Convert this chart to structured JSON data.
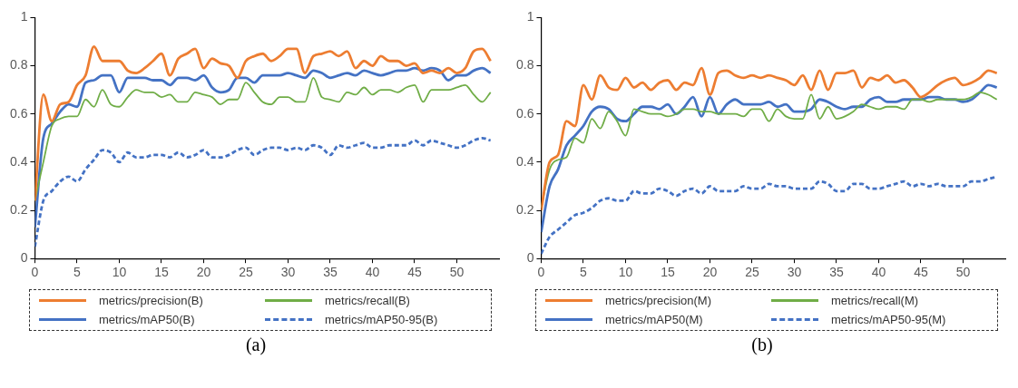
{
  "chart_data": [
    {
      "type": "line",
      "x": [
        0,
        1,
        2,
        3,
        4,
        5,
        6,
        7,
        8,
        9,
        10,
        11,
        12,
        13,
        14,
        15,
        16,
        17,
        18,
        19,
        20,
        21,
        22,
        23,
        24,
        25,
        26,
        27,
        28,
        29,
        30,
        31,
        32,
        33,
        34,
        35,
        36,
        37,
        38,
        39,
        40,
        41,
        42,
        43,
        44,
        45,
        46,
        47,
        48,
        49,
        50,
        51,
        52,
        53,
        54
      ],
      "xlim": [
        0,
        55
      ],
      "xticks": [
        0,
        5,
        10,
        15,
        20,
        25,
        30,
        35,
        40,
        45,
        50
      ],
      "ylim": [
        0,
        1
      ],
      "yticks": [
        0,
        0.2,
        0.4,
        0.6,
        0.8,
        1
      ],
      "grid": false,
      "marker": "none",
      "legend": "bottom",
      "annotations": [
        "(a)"
      ],
      "series": [
        {
          "name": "metrics/precision(B)",
          "color": "#ed7d31",
          "line_style": "solid",
          "values": [
            0.24,
            0.68,
            0.57,
            0.64,
            0.65,
            0.72,
            0.76,
            0.88,
            0.82,
            0.82,
            0.82,
            0.78,
            0.77,
            0.79,
            0.82,
            0.85,
            0.76,
            0.83,
            0.85,
            0.87,
            0.79,
            0.83,
            0.81,
            0.8,
            0.75,
            0.82,
            0.84,
            0.85,
            0.82,
            0.84,
            0.87,
            0.87,
            0.77,
            0.84,
            0.85,
            0.86,
            0.84,
            0.86,
            0.79,
            0.82,
            0.8,
            0.84,
            0.82,
            0.82,
            0.8,
            0.81,
            0.77,
            0.78,
            0.77,
            0.79,
            0.77,
            0.79,
            0.86,
            0.87,
            0.82
          ]
        },
        {
          "name": "metrics/recall(B)",
          "color": "#70ad47",
          "line_style": "solid",
          "values": [
            0.24,
            0.4,
            0.55,
            0.58,
            0.59,
            0.59,
            0.66,
            0.63,
            0.7,
            0.64,
            0.63,
            0.67,
            0.7,
            0.69,
            0.69,
            0.67,
            0.68,
            0.65,
            0.65,
            0.69,
            0.68,
            0.67,
            0.64,
            0.66,
            0.66,
            0.73,
            0.69,
            0.65,
            0.64,
            0.67,
            0.67,
            0.65,
            0.65,
            0.75,
            0.67,
            0.66,
            0.65,
            0.69,
            0.68,
            0.71,
            0.68,
            0.7,
            0.7,
            0.69,
            0.71,
            0.72,
            0.65,
            0.7,
            0.7,
            0.7,
            0.71,
            0.72,
            0.68,
            0.65,
            0.69
          ]
        },
        {
          "name": "metrics/mAP50(B)",
          "color": "#4472c4",
          "line_style": "solid",
          "values": [
            0.13,
            0.5,
            0.56,
            0.61,
            0.64,
            0.63,
            0.73,
            0.74,
            0.76,
            0.76,
            0.69,
            0.75,
            0.75,
            0.75,
            0.74,
            0.74,
            0.72,
            0.75,
            0.75,
            0.74,
            0.76,
            0.71,
            0.69,
            0.7,
            0.75,
            0.75,
            0.73,
            0.76,
            0.76,
            0.76,
            0.77,
            0.76,
            0.75,
            0.78,
            0.77,
            0.75,
            0.76,
            0.77,
            0.76,
            0.78,
            0.77,
            0.76,
            0.77,
            0.78,
            0.78,
            0.79,
            0.78,
            0.79,
            0.78,
            0.74,
            0.76,
            0.76,
            0.78,
            0.79,
            0.77
          ]
        },
        {
          "name": "metrics/mAP50-95(B)",
          "color": "#4472c4",
          "line_style": "dashed",
          "values": [
            0.05,
            0.24,
            0.28,
            0.32,
            0.34,
            0.32,
            0.37,
            0.41,
            0.45,
            0.44,
            0.4,
            0.44,
            0.42,
            0.42,
            0.43,
            0.43,
            0.42,
            0.44,
            0.42,
            0.43,
            0.45,
            0.42,
            0.42,
            0.43,
            0.45,
            0.46,
            0.43,
            0.45,
            0.46,
            0.46,
            0.45,
            0.46,
            0.45,
            0.47,
            0.46,
            0.43,
            0.47,
            0.46,
            0.47,
            0.48,
            0.46,
            0.46,
            0.47,
            0.47,
            0.47,
            0.49,
            0.47,
            0.49,
            0.48,
            0.47,
            0.46,
            0.47,
            0.49,
            0.5,
            0.49
          ]
        }
      ]
    },
    {
      "type": "line",
      "x": [
        0,
        1,
        2,
        3,
        4,
        5,
        6,
        7,
        8,
        9,
        10,
        11,
        12,
        13,
        14,
        15,
        16,
        17,
        18,
        19,
        20,
        21,
        22,
        23,
        24,
        25,
        26,
        27,
        28,
        29,
        30,
        31,
        32,
        33,
        34,
        35,
        36,
        37,
        38,
        39,
        40,
        41,
        42,
        43,
        44,
        45,
        46,
        47,
        48,
        49,
        50,
        51,
        52,
        53,
        54
      ],
      "xlim": [
        0,
        55
      ],
      "xticks": [
        0,
        5,
        10,
        15,
        20,
        25,
        30,
        35,
        40,
        45,
        50
      ],
      "ylim": [
        0,
        1
      ],
      "yticks": [
        0,
        0.2,
        0.4,
        0.6,
        0.8,
        1
      ],
      "grid": false,
      "marker": "none",
      "legend": "bottom",
      "annotations": [
        "(b)"
      ],
      "series": [
        {
          "name": "metrics/precision(M)",
          "color": "#ed7d31",
          "line_style": "solid",
          "values": [
            0.2,
            0.4,
            0.43,
            0.57,
            0.55,
            0.72,
            0.66,
            0.76,
            0.71,
            0.7,
            0.75,
            0.71,
            0.73,
            0.7,
            0.73,
            0.74,
            0.7,
            0.73,
            0.72,
            0.79,
            0.68,
            0.77,
            0.78,
            0.76,
            0.75,
            0.76,
            0.75,
            0.76,
            0.75,
            0.74,
            0.72,
            0.76,
            0.7,
            0.78,
            0.7,
            0.77,
            0.77,
            0.78,
            0.71,
            0.75,
            0.74,
            0.76,
            0.73,
            0.74,
            0.71,
            0.67,
            0.69,
            0.72,
            0.74,
            0.75,
            0.72,
            0.73,
            0.75,
            0.78,
            0.77
          ]
        },
        {
          "name": "metrics/recall(M)",
          "color": "#70ad47",
          "line_style": "solid",
          "values": [
            0.21,
            0.37,
            0.41,
            0.42,
            0.5,
            0.48,
            0.58,
            0.54,
            0.61,
            0.57,
            0.51,
            0.62,
            0.61,
            0.6,
            0.6,
            0.59,
            0.6,
            0.62,
            0.62,
            0.61,
            0.61,
            0.6,
            0.6,
            0.6,
            0.59,
            0.62,
            0.62,
            0.57,
            0.62,
            0.59,
            0.58,
            0.58,
            0.68,
            0.58,
            0.63,
            0.58,
            0.59,
            0.61,
            0.64,
            0.63,
            0.62,
            0.63,
            0.63,
            0.62,
            0.66,
            0.66,
            0.65,
            0.66,
            0.66,
            0.66,
            0.66,
            0.67,
            0.69,
            0.68,
            0.66
          ]
        },
        {
          "name": "metrics/mAP50(M)",
          "color": "#4472c4",
          "line_style": "solid",
          "values": [
            0.11,
            0.3,
            0.37,
            0.47,
            0.51,
            0.55,
            0.61,
            0.63,
            0.62,
            0.58,
            0.57,
            0.6,
            0.63,
            0.63,
            0.62,
            0.64,
            0.6,
            0.63,
            0.67,
            0.59,
            0.67,
            0.6,
            0.64,
            0.66,
            0.64,
            0.64,
            0.64,
            0.65,
            0.63,
            0.64,
            0.61,
            0.61,
            0.62,
            0.66,
            0.65,
            0.63,
            0.62,
            0.63,
            0.63,
            0.66,
            0.67,
            0.65,
            0.65,
            0.66,
            0.66,
            0.66,
            0.67,
            0.67,
            0.66,
            0.66,
            0.65,
            0.66,
            0.69,
            0.72,
            0.71
          ]
        },
        {
          "name": "metrics/mAP50-95(M)",
          "color": "#4472c4",
          "line_style": "dashed",
          "values": [
            0.02,
            0.09,
            0.12,
            0.15,
            0.18,
            0.19,
            0.21,
            0.24,
            0.25,
            0.24,
            0.24,
            0.28,
            0.27,
            0.27,
            0.29,
            0.28,
            0.26,
            0.28,
            0.29,
            0.27,
            0.3,
            0.28,
            0.28,
            0.28,
            0.3,
            0.29,
            0.29,
            0.31,
            0.3,
            0.3,
            0.29,
            0.29,
            0.29,
            0.32,
            0.31,
            0.28,
            0.28,
            0.31,
            0.31,
            0.29,
            0.29,
            0.3,
            0.31,
            0.32,
            0.3,
            0.31,
            0.3,
            0.31,
            0.3,
            0.3,
            0.3,
            0.32,
            0.32,
            0.33,
            0.34
          ]
        }
      ]
    }
  ]
}
